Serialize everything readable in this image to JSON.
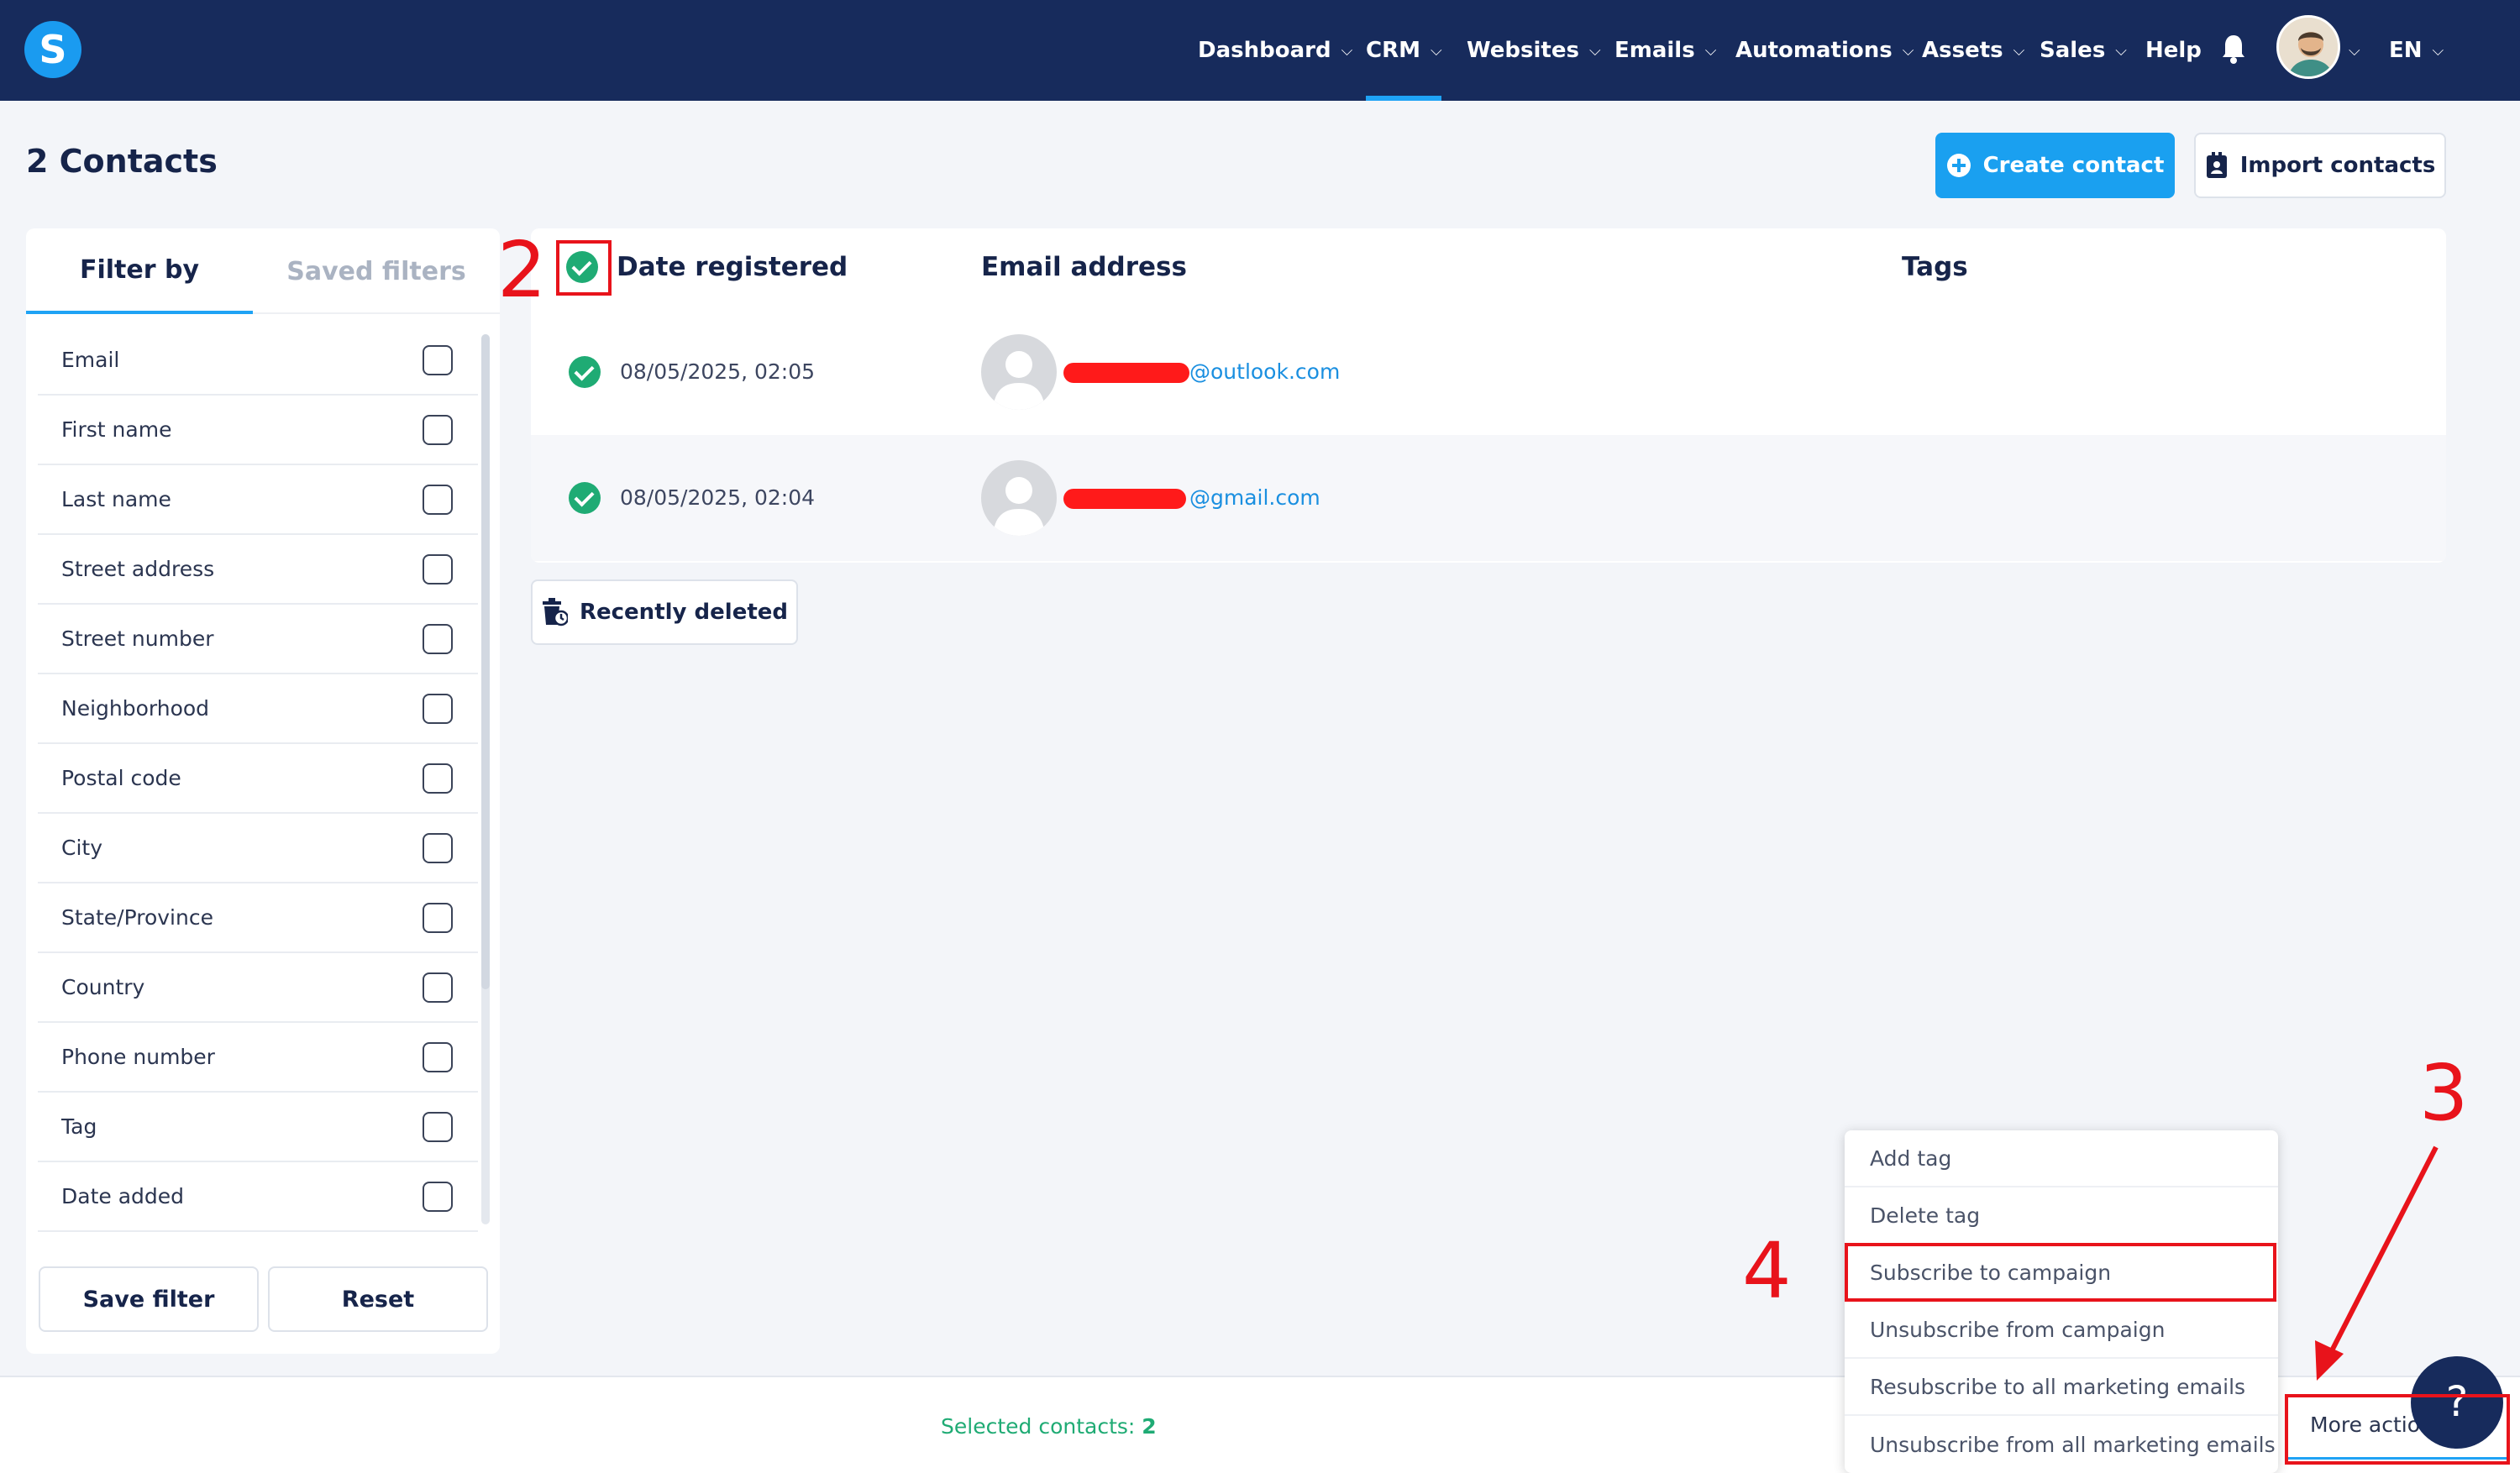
{
  "nav": {
    "logo": "S",
    "items": [
      {
        "label": "Dashboard",
        "chevron": true
      },
      {
        "label": "CRM",
        "chevron": true,
        "active": true
      },
      {
        "label": "Websites",
        "chevron": true
      },
      {
        "label": "Emails",
        "chevron": true
      },
      {
        "label": "Automations",
        "chevron": true
      },
      {
        "label": "Assets",
        "chevron": true
      },
      {
        "label": "Sales",
        "chevron": true
      },
      {
        "label": "Help",
        "chevron": false
      }
    ],
    "language": "EN",
    "icons": [
      "bell-icon",
      "avatar",
      "chevron-down-icon"
    ]
  },
  "page": {
    "title": "2 Contacts",
    "create_contact_label": "Create contact",
    "import_contacts_label": "Import contacts"
  },
  "filters": {
    "tab_filter_by": "Filter by",
    "tab_saved_filters": "Saved filters",
    "items": [
      "Email",
      "First name",
      "Last name",
      "Street address",
      "Street number",
      "Neighborhood",
      "Postal code",
      "City",
      "State/Province",
      "Country",
      "Phone number",
      "Tag",
      "Date added"
    ],
    "save_label": "Save filter",
    "reset_label": "Reset"
  },
  "table": {
    "headers": {
      "date": "Date registered",
      "email": "Email address",
      "tags": "Tags"
    },
    "rows": [
      {
        "date": "08/05/2025, 02:05",
        "email_domain": "@outlook.com",
        "tags": ""
      },
      {
        "date": "08/05/2025, 02:04",
        "email_domain": "@gmail.com",
        "tags": ""
      }
    ]
  },
  "recently_deleted_label": "Recently deleted",
  "bottom": {
    "selected_label": "Selected contacts: ",
    "selected_count": "2",
    "more_actions_label": "More actions",
    "help_label": "?"
  },
  "menu": {
    "items": [
      "Add tag",
      "Delete tag",
      "Subscribe to campaign",
      "Unsubscribe from campaign",
      "Resubscribe to all marketing emails",
      "Unsubscribe from all marketing emails"
    ]
  },
  "annotations": [
    "2",
    "3",
    "4"
  ],
  "colors": {
    "nav_bg": "#172b5c",
    "accent": "#1fa3f5",
    "success": "#1fab74",
    "annotation": "#e8131b"
  }
}
